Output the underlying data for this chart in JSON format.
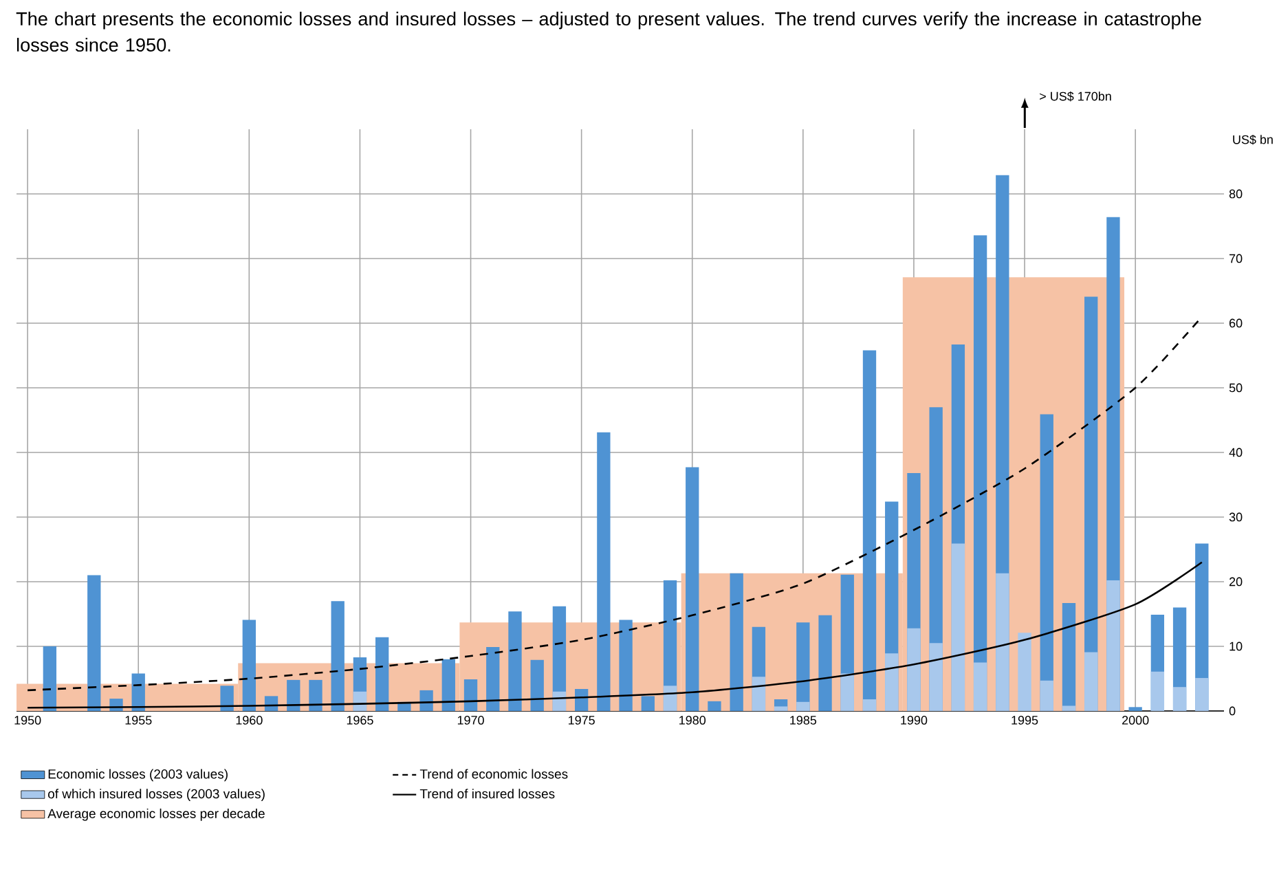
{
  "chart_data": {
    "type": "bar",
    "title": "The chart presents the economic losses and insured losses – adjusted to present values. The trend curves verify the increase in catastrophe losses since 1950.",
    "ylabel": "US$ bn",
    "x": [
      1951,
      1952,
      1953,
      1954,
      1955,
      1956,
      1957,
      1958,
      1959,
      1960,
      1961,
      1962,
      1963,
      1964,
      1965,
      1966,
      1967,
      1968,
      1969,
      1970,
      1971,
      1972,
      1973,
      1974,
      1975,
      1976,
      1977,
      1978,
      1979,
      1980,
      1981,
      1982,
      1983,
      1984,
      1985,
      1986,
      1987,
      1988,
      1989,
      1990,
      1991,
      1992,
      1993,
      1994,
      1995,
      1996,
      1997,
      1998,
      1999,
      2000,
      2001,
      2002,
      2003
    ],
    "series": [
      {
        "name": "Economic losses (2003 values)",
        "color": "#4f93d3",
        "values": [
          10,
          null,
          21,
          1.9,
          5.8,
          null,
          null,
          null,
          3.9,
          14.1,
          2.3,
          4.8,
          4.8,
          17,
          8.3,
          11.4,
          1.4,
          3.2,
          8,
          4.9,
          9.9,
          15.4,
          7.9,
          16.2,
          3.4,
          43.1,
          14.1,
          2.3,
          20.2,
          37.7,
          1.5,
          21.3,
          13,
          1.8,
          13.7,
          14.8,
          21.1,
          55.8,
          32.4,
          36.8,
          47,
          56.7,
          73.6,
          82.9,
          null,
          45.9,
          16.7,
          64.1,
          76.4,
          0.6,
          14.9,
          16,
          25.9
        ]
      },
      {
        "name": "of which insured losses (2003 values)",
        "color": "#a8c8ec",
        "values": [
          null,
          null,
          null,
          null,
          null,
          null,
          null,
          null,
          null,
          null,
          null,
          null,
          null,
          null,
          3,
          null,
          null,
          null,
          null,
          null,
          null,
          null,
          null,
          3,
          null,
          null,
          null,
          null,
          3.9,
          null,
          null,
          null,
          5.3,
          0.7,
          1.4,
          null,
          5.8,
          1.8,
          8.9,
          12.8,
          10.5,
          25.9,
          7.5,
          21.3,
          12.1,
          4.7,
          0.8,
          9.1,
          20.2,
          null,
          6.1,
          3.7,
          5.1
        ]
      },
      {
        "name": "Average economic losses per decade",
        "color": "#f6c2a5",
        "x": [
          1954.5,
          1964.5,
          1974.5,
          1984.5,
          1994.5
        ],
        "values": [
          4.2,
          7.4,
          13.7,
          21.3,
          67.1
        ]
      },
      {
        "name": "Trend of economic losses",
        "type": "line",
        "line_style": "dashed",
        "color": "#000000",
        "x": [
          1950,
          1955,
          1960,
          1965,
          1970,
          1975,
          1980,
          1985,
          1990,
          1995,
          2000,
          2003
        ],
        "values": [
          3.2,
          4,
          5,
          6.5,
          8.5,
          11,
          14.8,
          19.7,
          28,
          37.5,
          50,
          61
        ]
      },
      {
        "name": "Trend of insured losses",
        "type": "line",
        "line_style": "solid",
        "color": "#000000",
        "x": [
          1950,
          1955,
          1960,
          1965,
          1970,
          1975,
          1980,
          1985,
          1990,
          1995,
          2000,
          2003
        ],
        "values": [
          0.5,
          0.6,
          0.8,
          1.1,
          1.5,
          2.1,
          2.9,
          4.6,
          7.2,
          11,
          16.5,
          23
        ]
      }
    ],
    "xlim": [
      1949.5,
      2004
    ],
    "ylim": [
      0,
      90
    ],
    "xticks": [
      1950,
      1955,
      1960,
      1965,
      1970,
      1975,
      1980,
      1985,
      1990,
      1995,
      2000
    ],
    "yticks": [
      0,
      10,
      20,
      30,
      40,
      50,
      60,
      70,
      80
    ],
    "grid": true,
    "legend": "bottom",
    "annotations": [
      "> US$ 170bn"
    ]
  }
}
